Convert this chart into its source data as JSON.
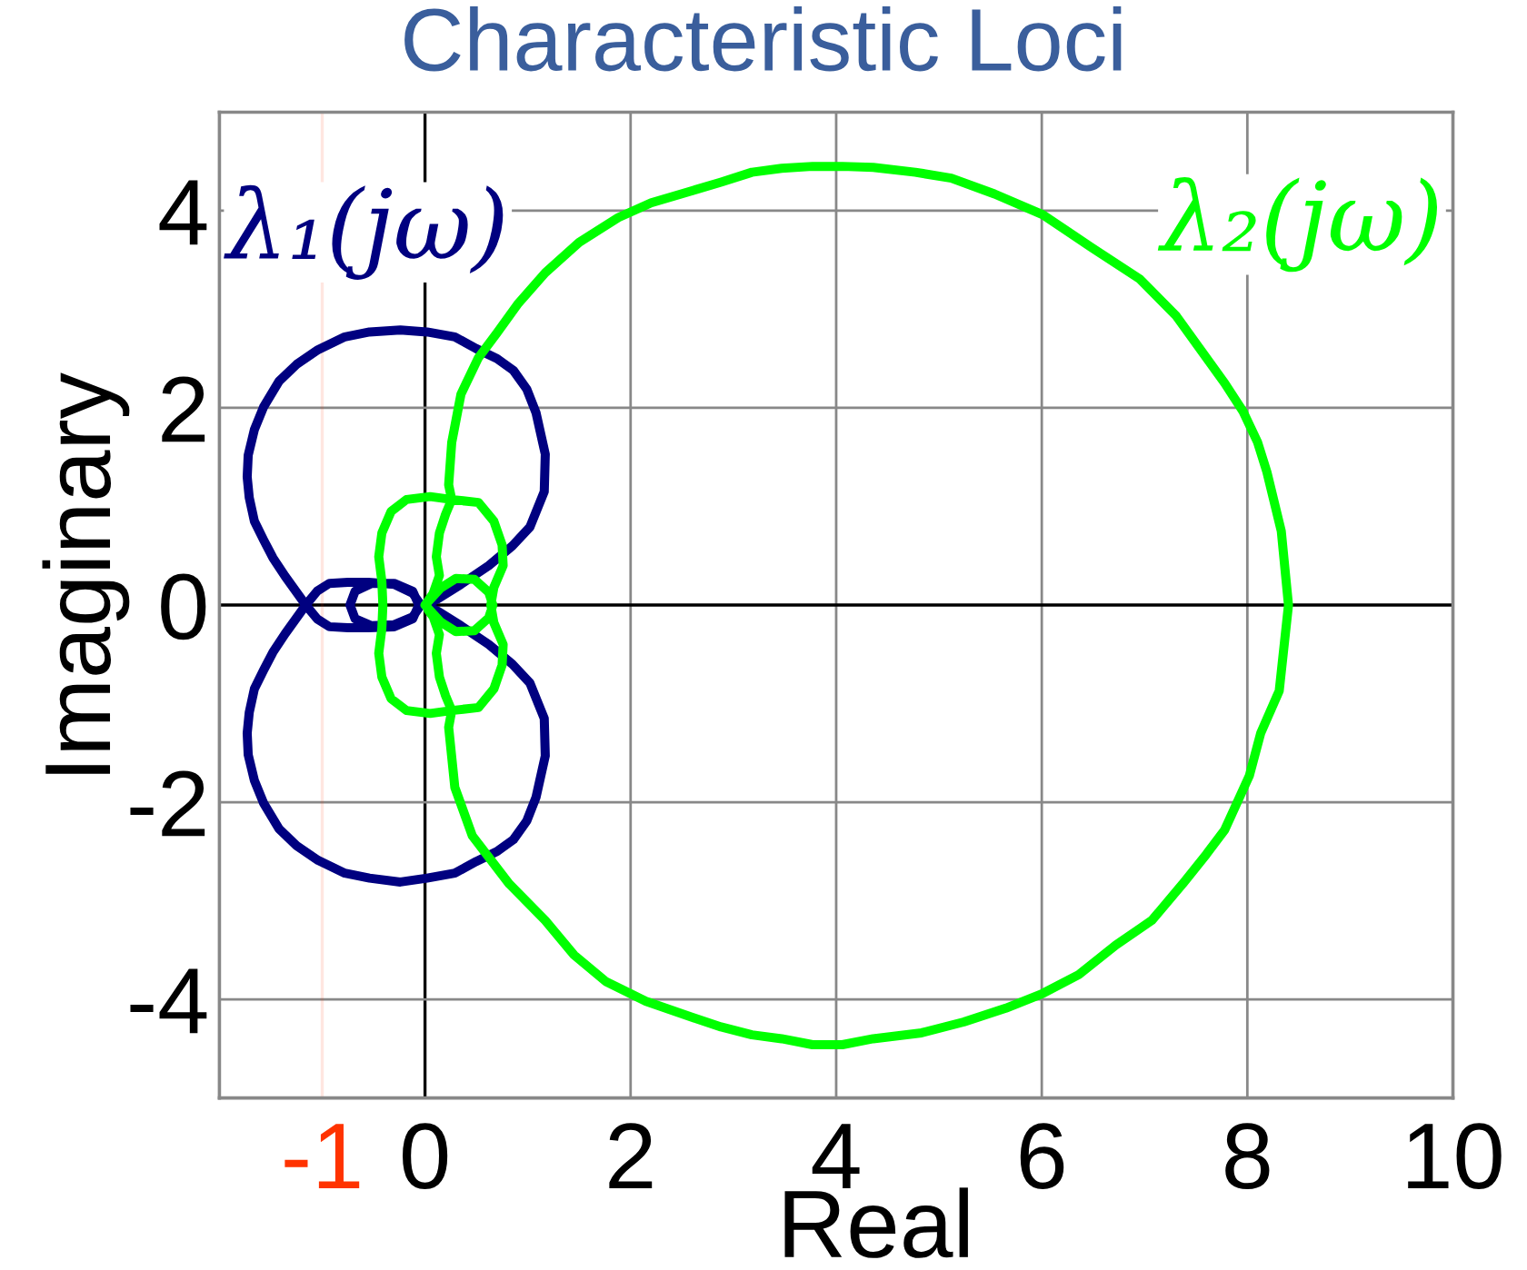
{
  "chart_data": {
    "type": "line",
    "title": "Characteristic Loci",
    "xlabel": "Real",
    "ylabel": "Imaginary",
    "xlim": [
      -2,
      10
    ],
    "ylim": [
      -5,
      5
    ],
    "xticks": [
      0,
      2,
      4,
      6,
      8,
      10
    ],
    "yticks": [
      -4,
      -2,
      0,
      2,
      4
    ],
    "grid": true,
    "ref_lines": [
      {
        "axis": "x",
        "value": -1,
        "label": "-1",
        "color": "#ff3300"
      }
    ],
    "series": [
      {
        "name": "λ₁(jω)",
        "color": "#000080",
        "x": [
          0,
          0.12,
          0.35,
          0.62,
          0.85,
          1.02,
          1.16,
          1.17,
          1.08,
          0.99,
          0.86,
          0.7,
          0.5,
          0.29,
          0.02,
          -0.24,
          -0.54,
          -0.78,
          -1.04,
          -1.25,
          -1.42,
          -1.57,
          -1.66,
          -1.72,
          -1.73,
          -1.71,
          -1.66,
          -1.57,
          -1.48,
          -1.36,
          -1.16,
          -1.05,
          -0.93,
          -0.75,
          -0.55,
          -0.3,
          -0.12,
          -0.06,
          -0.12,
          -0.3,
          -0.52,
          -0.68,
          -0.73,
          -0.68,
          -0.52,
          -0.3,
          -0.12,
          -0.04,
          -0.12,
          -0.3,
          -0.55,
          -0.75,
          -0.93,
          -1.05,
          -1.16,
          -1.36,
          -1.48,
          -1.57,
          -1.66,
          -1.71,
          -1.73,
          -1.72,
          -1.66,
          -1.57,
          -1.42,
          -1.25,
          -1.04,
          -0.78,
          -0.54,
          -0.24,
          0.02,
          0.29,
          0.5,
          0.7,
          0.86,
          0.99,
          1.08,
          1.17,
          1.16,
          1.02,
          0.85,
          0.62,
          0.35,
          0.12,
          0.04
        ],
        "values": [
          0,
          0.06,
          0.21,
          0.4,
          0.6,
          0.79,
          1.15,
          1.53,
          1.95,
          2.19,
          2.38,
          2.5,
          2.6,
          2.72,
          2.77,
          2.79,
          2.77,
          2.72,
          2.59,
          2.44,
          2.27,
          2.01,
          1.78,
          1.52,
          1.3,
          1.09,
          0.85,
          0.66,
          0.48,
          0.29,
          0,
          -0.14,
          -0.22,
          -0.23,
          -0.23,
          -0.22,
          -0.14,
          0,
          0.14,
          0.22,
          0.22,
          0.14,
          0,
          -0.14,
          -0.21,
          -0.2,
          -0.12,
          0,
          0.12,
          0.21,
          0.23,
          0.23,
          0.22,
          0.14,
          0,
          -0.29,
          -0.48,
          -0.66,
          -0.85,
          -1.09,
          -1.3,
          -1.52,
          -1.78,
          -2.01,
          -2.27,
          -2.44,
          -2.59,
          -2.72,
          -2.77,
          -2.81,
          -2.77,
          -2.72,
          -2.6,
          -2.5,
          -2.38,
          -2.19,
          -1.95,
          -1.53,
          -1.15,
          -0.79,
          -0.6,
          -0.4,
          -0.21,
          -0.06,
          -0.02
        ]
      },
      {
        "name": "λ₂(jω)",
        "color": "#00ff00",
        "x": [
          0,
          0.15,
          0.3,
          0.48,
          0.62,
          0.66,
          0.62,
          0.48,
          0.3,
          0.15,
          0,
          0.08,
          0.14,
          0.11,
          0.14,
          0.2,
          0.26,
          0.23,
          0.26,
          0.35,
          0.52,
          0.7,
          0.9,
          1.17,
          1.5,
          1.88,
          2.2,
          2.59,
          2.88,
          3.18,
          3.47,
          3.77,
          4.06,
          4.36,
          4.77,
          5.12,
          5.54,
          6.01,
          6.48,
          6.95,
          7.31,
          7.6,
          7.78,
          7.96,
          8.1,
          8.19,
          8.33,
          8.4,
          8.31,
          8.13,
          8.02,
          7.78,
          7.6,
          7.37,
          7.07,
          6.72,
          6.36,
          6.01,
          5.65,
          5.24,
          4.83,
          4.36,
          4.06,
          3.77,
          3.47,
          3.18,
          2.88,
          2.59,
          2.15,
          1.76,
          1.45,
          1.17,
          0.82,
          0.46,
          0.29,
          0.23,
          0.26,
          0.05,
          -0.18,
          -0.33,
          -0.42,
          -0.45,
          -0.42,
          -0.41,
          -0.42,
          -0.45,
          -0.42,
          -0.33,
          -0.18,
          0.05,
          0.26,
          0.52,
          0.67,
          0.75,
          0.76,
          0.67,
          0.64,
          0.67,
          0.76,
          0.75,
          0.67,
          0.52,
          0.26,
          0.2,
          0.14,
          0.11,
          0.14,
          0.08,
          0.03
        ],
        "values": [
          0,
          -0.17,
          -0.27,
          -0.26,
          -0.13,
          0,
          0.13,
          0.26,
          0.27,
          0.17,
          0,
          0.12,
          0.3,
          0.49,
          0.73,
          0.92,
          1.07,
          1.22,
          1.65,
          2.14,
          2.51,
          2.76,
          3.05,
          3.37,
          3.68,
          3.93,
          4.08,
          4.2,
          4.29,
          4.39,
          4.43,
          4.45,
          4.45,
          4.44,
          4.39,
          4.33,
          4.17,
          3.96,
          3.63,
          3.31,
          2.93,
          2.51,
          2.25,
          1.96,
          1.65,
          1.35,
          0.75,
          0,
          -0.87,
          -1.3,
          -1.73,
          -2.28,
          -2.53,
          -2.83,
          -3.2,
          -3.45,
          -3.75,
          -3.94,
          -4.09,
          -4.23,
          -4.34,
          -4.4,
          -4.46,
          -4.46,
          -4.4,
          -4.36,
          -4.28,
          -4.18,
          -4.02,
          -3.82,
          -3.55,
          -3.2,
          -2.83,
          -2.34,
          -1.85,
          -1.24,
          -1.07,
          -1.1,
          -1.07,
          -0.95,
          -0.73,
          -0.49,
          -0.24,
          0,
          0.24,
          0.49,
          0.73,
          0.95,
          1.07,
          1.1,
          1.07,
          1.04,
          0.85,
          0.61,
          0.4,
          0.18,
          0,
          -0.18,
          -0.4,
          -0.61,
          -0.85,
          -1.04,
          -1.07,
          -0.92,
          -0.73,
          -0.49,
          -0.3,
          -0.12,
          -0.05
        ]
      }
    ]
  }
}
